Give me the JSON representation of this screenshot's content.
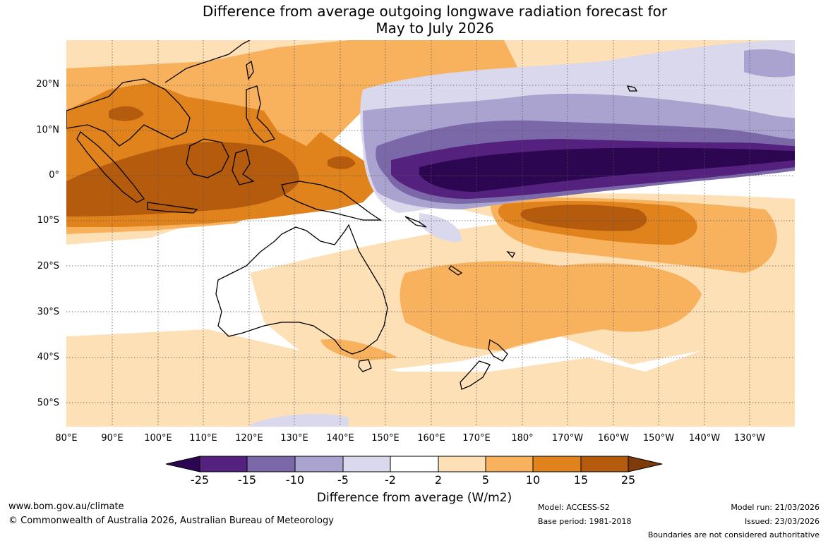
{
  "title": {
    "line1": "Difference from average outgoing longwave radiation forecast for",
    "line2": "May to July 2026"
  },
  "map": {
    "lat_labels": [
      "20°N",
      "10°N",
      "0°",
      "10°S",
      "20°S",
      "30°S",
      "40°S",
      "50°S"
    ],
    "lon_labels": [
      "80°E",
      "90°E",
      "100°E",
      "110°E",
      "120°E",
      "130°E",
      "140°E",
      "150°E",
      "160°E",
      "170°E",
      "180°",
      "170°W",
      "160°W",
      "150°W",
      "140°W",
      "130°W"
    ]
  },
  "colorbar": {
    "title": "Difference from average (W/m2)",
    "ticks": [
      "-25",
      "-15",
      "-10",
      "-5",
      "-2",
      "2",
      "5",
      "10",
      "15",
      "25"
    ],
    "colors": [
      "#54217f",
      "#7b68a8",
      "#aba3cf",
      "#d9d8ec",
      "#ffffff",
      "#fde0b6",
      "#f8b15d",
      "#e0831d",
      "#b45b0d"
    ],
    "under_color": "#2c0650",
    "over_color": "#7f3b08"
  },
  "footer": {
    "url": "www.bom.gov.au/climate",
    "copyright": "© Commonwealth of Australia 2026, Australian Bureau of Meteorology",
    "model": "Model: ACCESS-S2",
    "base_period": "Base period: 1981-2018",
    "model_run": "Model run: 21/03/2026",
    "issued": "Issued: 23/03/2026",
    "boundaries": "Boundaries are not considered authoritative"
  }
}
